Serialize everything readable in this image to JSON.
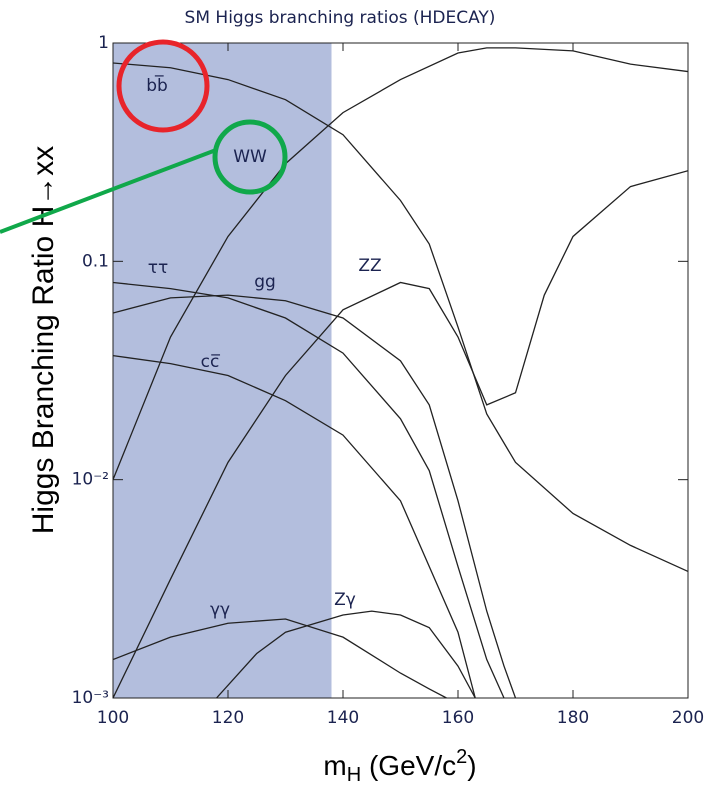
{
  "chart_data": {
    "type": "line",
    "title": "SM Higgs branching ratios (HDECAY)",
    "y_label": "Higgs Branching Ratio H→xx",
    "x_label": [
      "m",
      "H",
      " (GeV/c",
      "2",
      ")"
    ],
    "xlim": [
      100,
      200
    ],
    "xticks": [
      100,
      120,
      140,
      160,
      180,
      200
    ],
    "ylim": [
      0.001,
      1
    ],
    "yticks": [
      1,
      0.1,
      {
        "value": 0.01,
        "label": "10⁻²"
      },
      {
        "value": 0.001,
        "label": "10⁻³"
      }
    ],
    "y_scale": "log",
    "shaded_region": [
      100,
      138
    ],
    "shaded_color": "#b3bedd",
    "series": [
      {
        "name": "bb̅",
        "color": "#222222",
        "x": [
          100,
          110,
          120,
          130,
          140,
          150,
          155,
          160,
          165,
          170,
          180,
          190,
          200
        ],
        "values": [
          0.81,
          0.77,
          0.68,
          0.55,
          0.38,
          0.19,
          0.12,
          0.05,
          0.02,
          0.012,
          0.007,
          0.005,
          0.0038
        ]
      },
      {
        "name": "WW",
        "color": "#222222",
        "x": [
          100,
          110,
          120,
          130,
          140,
          150,
          160,
          165,
          170,
          180,
          190,
          200
        ],
        "values": [
          0.01,
          0.045,
          0.13,
          0.28,
          0.48,
          0.68,
          0.9,
          0.95,
          0.95,
          0.92,
          0.8,
          0.74
        ]
      },
      {
        "name": "ττ",
        "color": "#222222",
        "x": [
          100,
          110,
          120,
          130,
          140,
          150,
          155,
          160,
          165,
          168
        ],
        "values": [
          0.08,
          0.075,
          0.068,
          0.055,
          0.038,
          0.019,
          0.011,
          0.004,
          0.0015,
          0.001
        ]
      },
      {
        "name": "gg",
        "color": "#222222",
        "x": [
          100,
          110,
          120,
          130,
          140,
          150,
          155,
          160,
          165,
          168,
          170
        ],
        "values": [
          0.058,
          0.068,
          0.07,
          0.066,
          0.055,
          0.035,
          0.022,
          0.008,
          0.0025,
          0.0014,
          0.001
        ]
      },
      {
        "name": "cc̅",
        "color": "#222222",
        "x": [
          100,
          110,
          120,
          130,
          140,
          150,
          160,
          163
        ],
        "values": [
          0.037,
          0.034,
          0.03,
          0.023,
          0.016,
          0.008,
          0.002,
          0.001
        ]
      },
      {
        "name": "ZZ",
        "color": "#222222",
        "x": [
          100,
          110,
          120,
          130,
          140,
          150,
          155,
          160,
          165,
          170,
          175,
          180,
          190,
          200
        ],
        "values": [
          0.001,
          0.0035,
          0.012,
          0.03,
          0.06,
          0.08,
          0.075,
          0.045,
          0.022,
          0.025,
          0.07,
          0.13,
          0.22,
          0.26
        ]
      },
      {
        "name": "γγ",
        "color": "#222222",
        "x": [
          100,
          110,
          120,
          130,
          140,
          150,
          155,
          158
        ],
        "values": [
          0.0015,
          0.0019,
          0.0022,
          0.0023,
          0.0019,
          0.0013,
          0.0011,
          0.001
        ]
      },
      {
        "name": "Zγ",
        "color": "#222222",
        "x": [
          118,
          125,
          130,
          140,
          145,
          150,
          155,
          160,
          163
        ],
        "values": [
          0.001,
          0.0016,
          0.002,
          0.0024,
          0.0025,
          0.0024,
          0.0021,
          0.0014,
          0.001
        ]
      }
    ]
  }
}
